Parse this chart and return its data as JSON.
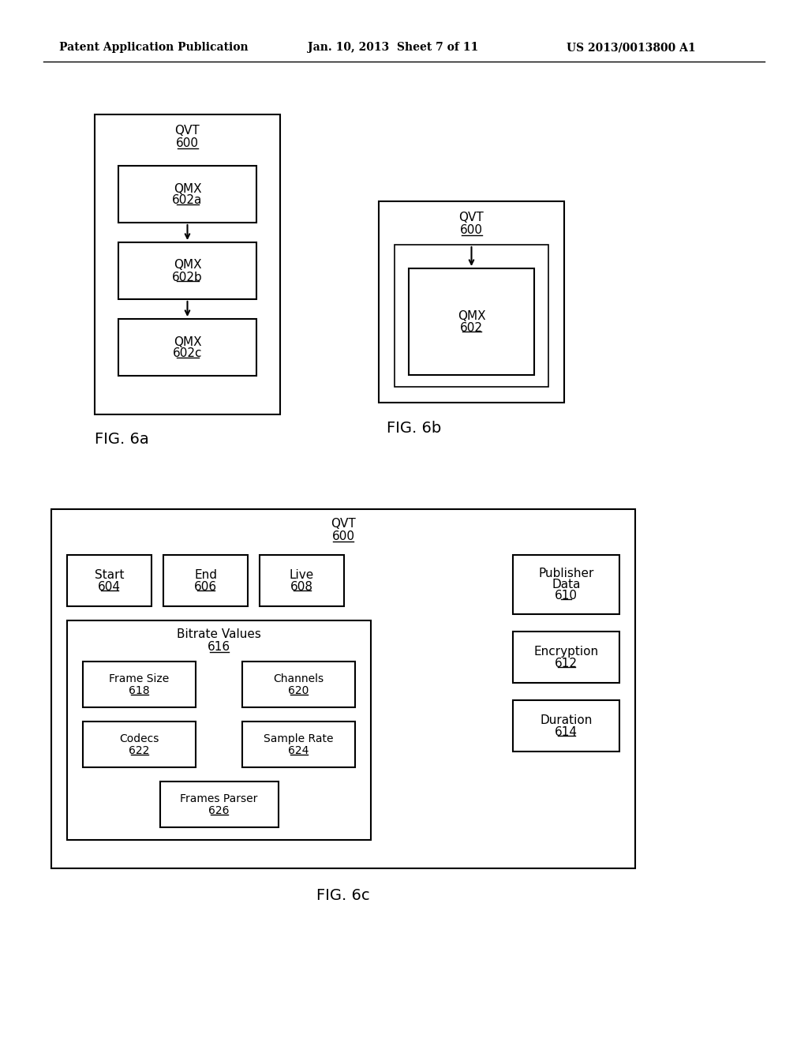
{
  "header_left": "Patent Application Publication",
  "header_mid": "Jan. 10, 2013  Sheet 7 of 11",
  "header_right": "US 2013/0013800 A1",
  "bg_color": "#ffffff",
  "line_color": "#000000",
  "text_color": "#000000",
  "fig_width": 1024,
  "fig_height": 1320
}
